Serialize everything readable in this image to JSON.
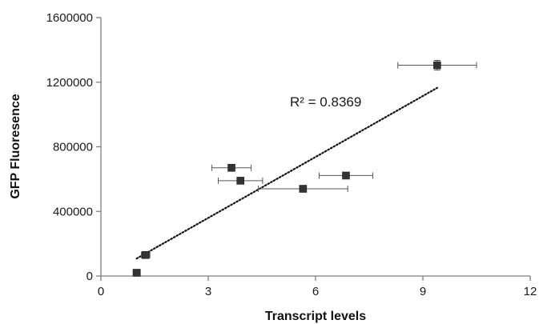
{
  "chart_data": {
    "type": "scatter",
    "xlabel": "Transcript levels",
    "ylabel": "GFP Fluoresence",
    "xlim": [
      0,
      12
    ],
    "ylim": [
      0,
      1600000
    ],
    "x_ticks": [
      0,
      3,
      6,
      9,
      12
    ],
    "y_ticks": [
      0,
      400000,
      800000,
      1200000,
      1600000
    ],
    "x_tick_labels": [
      "0",
      "3",
      "6",
      "9",
      "12"
    ],
    "y_tick_labels": [
      "0",
      "400000",
      "800000",
      "1200000",
      "1600000"
    ],
    "grid": false,
    "points": [
      {
        "x": 1.0,
        "y": 20000,
        "x_err": 0.1,
        "y_err": 12000
      },
      {
        "x": 1.25,
        "y": 130000,
        "x_err": 0.12,
        "y_err": 15000
      },
      {
        "x": 3.65,
        "y": 670000,
        "x_err": 0.55,
        "y_err": 8000
      },
      {
        "x": 3.9,
        "y": 590000,
        "x_err": 0.62,
        "y_err": 8000
      },
      {
        "x": 5.65,
        "y": 540000,
        "x_err": 1.25,
        "y_err": 8000
      },
      {
        "x": 6.85,
        "y": 622000,
        "x_err": 0.75,
        "y_err": 8000
      },
      {
        "x": 9.4,
        "y": 1305000,
        "x_err": 1.1,
        "y_err": 30000
      }
    ],
    "trendline": {
      "x": [
        1.0,
        9.4
      ],
      "y": [
        108000,
        1165000
      ],
      "style": "dotted"
    },
    "annotation": "R² = 0.8369",
    "marker_color": "#333333",
    "line_color": "#111111"
  }
}
